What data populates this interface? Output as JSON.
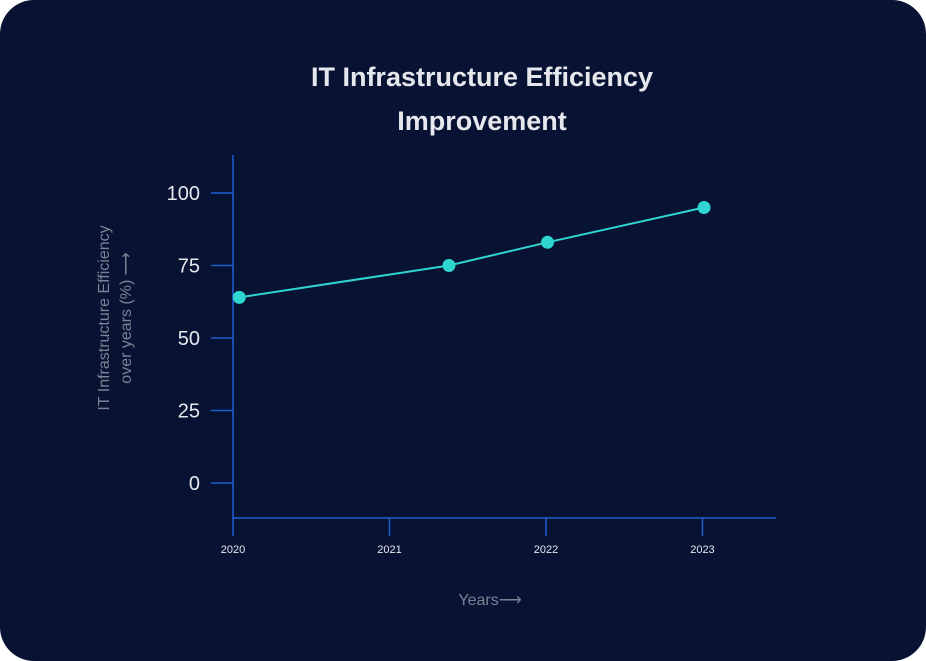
{
  "chart_data": {
    "type": "line",
    "title_lines": [
      "IT Infrastructure Efficiency",
      "Improvement"
    ],
    "xlabel": "Years",
    "ylabel_lines": [
      "IT Infrastructure Efficiency",
      "over years (%)"
    ],
    "x_ticks": [
      "2020",
      "2021",
      "2022",
      "2023"
    ],
    "y_ticks": [
      "0",
      "25",
      "50",
      "75",
      "100"
    ],
    "ylim": [
      -12,
      113
    ],
    "xlim": [
      2020,
      2023.47
    ],
    "grid": false,
    "series": [
      {
        "name": "IT Infrastructure Efficiency",
        "x": [
          2020.04,
          2021.38,
          2022.01,
          2023.01
        ],
        "values": [
          64,
          75,
          83,
          95
        ]
      }
    ],
    "colors": {
      "background": "#081233",
      "axis": "#1f5fd0",
      "line": "#2fd6d0",
      "text": "#e6e8ee",
      "muted": "#7c8294"
    }
  }
}
